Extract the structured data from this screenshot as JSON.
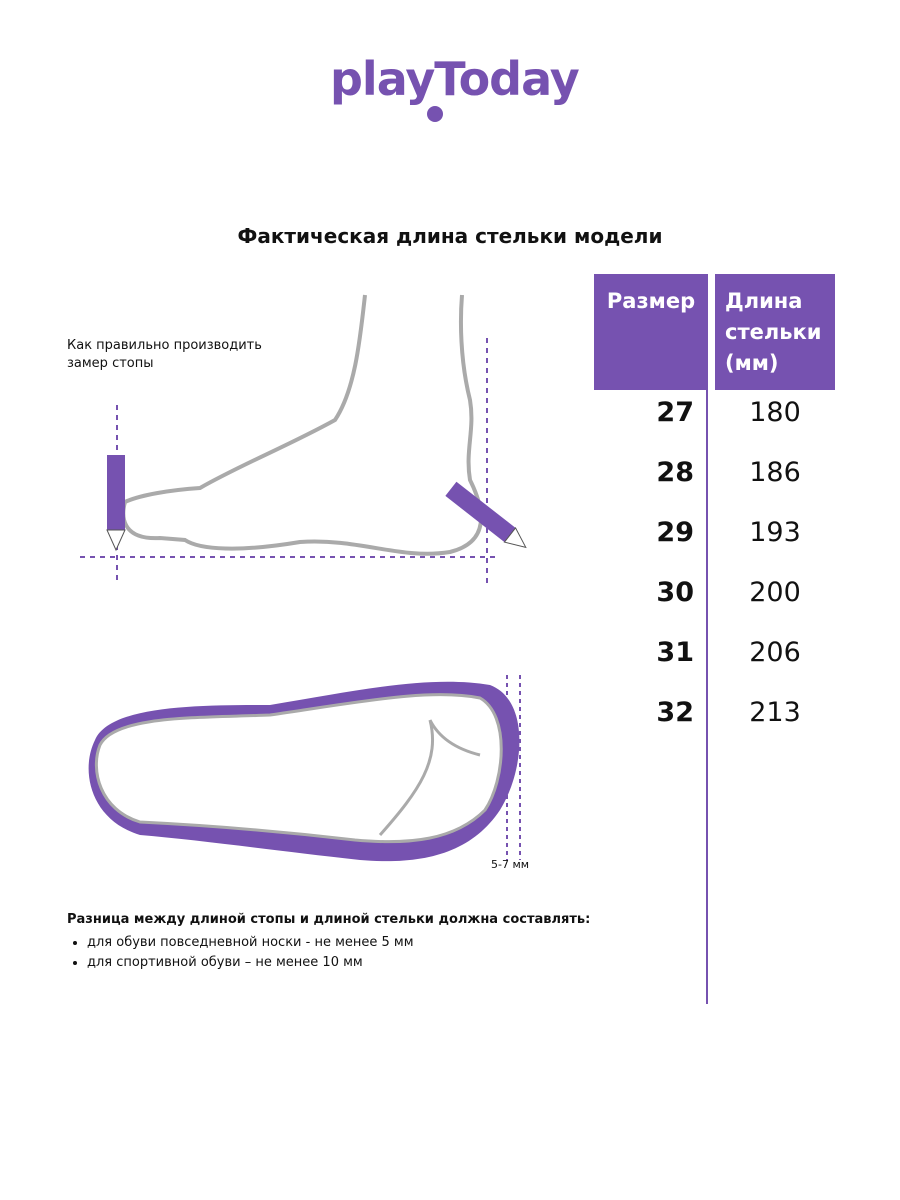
{
  "brand": {
    "logo_text": "playToday",
    "color": "#7652b0"
  },
  "title": "Фактическая длина стельки модели",
  "table": {
    "headers": {
      "size": "Размер",
      "length": "Длина стельки (мм)"
    },
    "rows": [
      {
        "size": "27",
        "length": "180"
      },
      {
        "size": "28",
        "length": "186"
      },
      {
        "size": "29",
        "length": "193"
      },
      {
        "size": "30",
        "length": "200"
      },
      {
        "size": "31",
        "length": "206"
      },
      {
        "size": "32",
        "length": "213"
      }
    ]
  },
  "diagram": {
    "howto": "Как правильно производить замер стопы",
    "gap_label": "5-7 мм"
  },
  "notes": {
    "heading": "Разница между длиной стопы и длиной стельки должна составлять:",
    "items": [
      "для обуви повседневной носки -  не менее 5 мм",
      "для спортивной обуви – не менее 10 мм"
    ]
  }
}
